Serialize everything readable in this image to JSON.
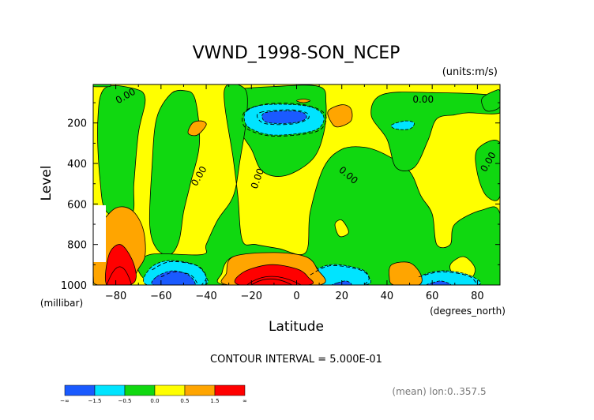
{
  "chart_data": {
    "type": "contour",
    "title": "VWND_1998-SON_NCEP",
    "units": "(units:m/s)",
    "xlabel": "Latitude",
    "xunits": "(degrees_north)",
    "ylabel": "Level",
    "yunits": "(millibar)",
    "xlim": [
      -90,
      90
    ],
    "ylim": [
      1000,
      10
    ],
    "x_ticks": [
      -80,
      -60,
      -40,
      -20,
      0,
      20,
      40,
      60,
      80
    ],
    "y_ticks": [
      200,
      400,
      600,
      800,
      1000
    ],
    "contour_interval_text": "CONTOUR INTERVAL = 5.000E-01",
    "mean_text": "(mean) lon:0..357.5",
    "zero_contour_label": "0.00",
    "colorbar": {
      "levels": [
        "-∞",
        "-1.5",
        "-0.5",
        "0.0",
        "0.5",
        "1.5",
        "∞"
      ],
      "colors": [
        "#1a5aff",
        "#00e4ff",
        "#10d810",
        "#ffff00",
        "#ffa500",
        "#ff0000"
      ]
    },
    "colors": {
      "positive_small": "#ffff00",
      "negative_small": "#10d810",
      "positive_mid": "#ffa500",
      "negative_mid": "#00e4ff",
      "positive_strong": "#ff0000",
      "negative_strong": "#1a5aff"
    },
    "regions": [
      {
        "type": "negative_small",
        "points": [
          [
            -85,
            30
          ],
          [
            -72,
            30
          ],
          [
            -67,
            80
          ],
          [
            -70,
            250
          ],
          [
            -72,
            500
          ],
          [
            -73,
            650
          ],
          [
            -84,
            640
          ],
          [
            -87,
            480
          ],
          [
            -88,
            200
          ]
        ]
      },
      {
        "type": "negative_small",
        "points": [
          [
            -50,
            40
          ],
          [
            -45,
            80
          ],
          [
            -43,
            300
          ],
          [
            -47,
            500
          ],
          [
            -50,
            640
          ],
          [
            -52,
            780
          ],
          [
            -56,
            850
          ],
          [
            -62,
            820
          ],
          [
            -65,
            700
          ],
          [
            -64,
            420
          ],
          [
            -62,
            180
          ],
          [
            -56,
            60
          ]
        ]
      },
      {
        "type": "negative_small",
        "points": [
          [
            -30,
            40
          ],
          [
            -10,
            20
          ],
          [
            10,
            20
          ],
          [
            13,
            100
          ],
          [
            12,
            250
          ],
          [
            7,
            380
          ],
          [
            -5,
            460
          ],
          [
            -15,
            440
          ],
          [
            -20,
            330
          ],
          [
            -26,
            220
          ],
          [
            -28,
            90
          ]
        ]
      },
      {
        "type": "negative_small",
        "points": [
          [
            -32,
            40
          ],
          [
            -23,
            30
          ],
          [
            -22,
            160
          ],
          [
            -25,
            380
          ],
          [
            -28,
            560
          ],
          [
            -35,
            680
          ],
          [
            -40,
            800
          ],
          [
            -42,
            850
          ],
          [
            -65,
            850
          ],
          [
            -70,
            930
          ],
          [
            -58,
            1000
          ],
          [
            -10,
            1000
          ],
          [
            25,
            1000
          ],
          [
            60,
            1000
          ],
          [
            90,
            1000
          ],
          [
            90,
            650
          ],
          [
            82,
            630
          ],
          [
            70,
            700
          ],
          [
            68,
            800
          ],
          [
            62,
            800
          ],
          [
            60,
            650
          ],
          [
            55,
            560
          ],
          [
            50,
            440
          ],
          [
            40,
            360
          ],
          [
            30,
            320
          ],
          [
            20,
            330
          ],
          [
            12,
            420
          ],
          [
            6,
            640
          ],
          [
            4,
            840
          ],
          [
            -8,
            820
          ],
          [
            -18,
            800
          ],
          [
            -24,
            780
          ],
          [
            -26,
            560
          ],
          [
            -28,
            380
          ]
        ]
      },
      {
        "type": "negative_small",
        "points": [
          [
            38,
            60
          ],
          [
            60,
            50
          ],
          [
            90,
            70
          ],
          [
            90,
            150
          ],
          [
            76,
            150
          ],
          [
            70,
            160
          ],
          [
            62,
            180
          ],
          [
            58,
            290
          ],
          [
            52,
            420
          ],
          [
            44,
            420
          ],
          [
            40,
            280
          ],
          [
            33,
            160
          ]
        ]
      },
      {
        "type": "negative_small",
        "points": [
          [
            80,
            330
          ],
          [
            90,
            300
          ],
          [
            90,
            560
          ],
          [
            84,
            560
          ],
          [
            80,
            450
          ]
        ]
      },
      {
        "type": "negative_small",
        "points": [
          [
            82,
            80
          ],
          [
            88,
            40
          ],
          [
            90,
            45
          ],
          [
            90,
            120
          ],
          [
            84,
            140
          ]
        ]
      },
      {
        "type": "negative_small",
        "points": [
          [
            -90,
            10
          ],
          [
            -83,
            10
          ],
          [
            -83,
            20
          ],
          [
            -90,
            20
          ]
        ]
      },
      {
        "type": "positive_small",
        "points": [
          [
            -28,
            860
          ],
          [
            -10,
            850
          ],
          [
            3,
            860
          ],
          [
            10,
            930
          ],
          [
            12,
            1000
          ],
          [
            -31,
            1000
          ],
          [
            -33,
            940
          ]
        ]
      },
      {
        "type": "positive_small",
        "points": [
          [
            20,
            680
          ],
          [
            23,
            740
          ],
          [
            19,
            760
          ],
          [
            17,
            700
          ]
        ]
      },
      {
        "type": "positive_small",
        "points": [
          [
            68,
            900
          ],
          [
            74,
            860
          ],
          [
            79,
            920
          ],
          [
            76,
            980
          ],
          [
            70,
            960
          ]
        ]
      },
      {
        "type": "negative_mid",
        "points": [
          [
            -22,
            140
          ],
          [
            -14,
            110
          ],
          [
            2,
            112
          ],
          [
            10,
            140
          ],
          [
            12,
            190
          ],
          [
            7,
            240
          ],
          [
            -10,
            260
          ],
          [
            -20,
            230
          ],
          [
            -23,
            190
          ]
        ]
      },
      {
        "type": "negative_mid",
        "points": [
          [
            -65,
            920
          ],
          [
            -57,
            880
          ],
          [
            -45,
            900
          ],
          [
            -40,
            960
          ],
          [
            -42,
            1000
          ],
          [
            -66,
            1000
          ]
        ]
      },
      {
        "type": "negative_mid",
        "points": [
          [
            5,
            950
          ],
          [
            15,
            900
          ],
          [
            28,
            920
          ],
          [
            32,
            960
          ],
          [
            30,
            1000
          ],
          [
            4,
            1000
          ]
        ]
      },
      {
        "type": "negative_mid",
        "points": [
          [
            54,
            960
          ],
          [
            64,
            930
          ],
          [
            76,
            950
          ],
          [
            80,
            1000
          ],
          [
            52,
            1000
          ]
        ]
      },
      {
        "type": "negative_mid",
        "points": [
          [
            42,
            210
          ],
          [
            48,
            190
          ],
          [
            52,
            200
          ],
          [
            50,
            230
          ],
          [
            44,
            230
          ]
        ]
      },
      {
        "type": "negative_strong",
        "points": [
          [
            -14,
            150
          ],
          [
            -4,
            140
          ],
          [
            3,
            150
          ],
          [
            4,
            180
          ],
          [
            -2,
            200
          ],
          [
            -12,
            200
          ],
          [
            -15,
            180
          ]
        ]
      },
      {
        "type": "negative_strong",
        "points": [
          [
            -62,
            960
          ],
          [
            -55,
            930
          ],
          [
            -48,
            950
          ],
          [
            -45,
            990
          ],
          [
            -47,
            1000
          ],
          [
            -63,
            1000
          ]
        ]
      },
      {
        "type": "negative_strong",
        "points": [
          [
            18,
            990
          ],
          [
            22,
            980
          ],
          [
            24,
            1000
          ],
          [
            16,
            1000
          ]
        ]
      },
      {
        "type": "negative_strong",
        "points": [
          [
            60,
            990
          ],
          [
            64,
            980
          ],
          [
            68,
            1000
          ],
          [
            58,
            1000
          ]
        ]
      },
      {
        "type": "positive_mid",
        "points": [
          [
            -87,
            700
          ],
          [
            -80,
            620
          ],
          [
            -73,
            630
          ],
          [
            -68,
            720
          ],
          [
            -67,
            850
          ],
          [
            -70,
            920
          ],
          [
            -75,
            1000
          ],
          [
            -88,
            1000
          ],
          [
            -90,
            950
          ],
          [
            -90,
            750
          ]
        ]
      },
      {
        "type": "positive_mid",
        "points": [
          [
            -28,
            860
          ],
          [
            -10,
            840
          ],
          [
            4,
            860
          ],
          [
            9,
            920
          ],
          [
            10,
            1000
          ],
          [
            -30,
            1000
          ],
          [
            -31,
            940
          ]
        ]
      },
      {
        "type": "positive_mid",
        "points": [
          [
            14,
            140
          ],
          [
            20,
            110
          ],
          [
            24,
            130
          ],
          [
            24,
            190
          ],
          [
            18,
            220
          ],
          [
            15,
            190
          ]
        ]
      },
      {
        "type": "positive_mid",
        "points": [
          [
            -46,
            200
          ],
          [
            -42,
            190
          ],
          [
            -40,
            210
          ],
          [
            -44,
            260
          ],
          [
            -48,
            250
          ]
        ]
      },
      {
        "type": "positive_mid",
        "points": [
          [
            42,
            900
          ],
          [
            50,
            890
          ],
          [
            55,
            950
          ],
          [
            54,
            1000
          ],
          [
            43,
            1000
          ],
          [
            41,
            960
          ]
        ]
      },
      {
        "type": "positive_mid",
        "points": [
          [
            0,
            90
          ],
          [
            3,
            82
          ],
          [
            6,
            90
          ],
          [
            3,
            100
          ]
        ]
      },
      {
        "type": "positive_strong",
        "points": [
          [
            -83,
            850
          ],
          [
            -78,
            800
          ],
          [
            -73,
            870
          ],
          [
            -71,
            960
          ],
          [
            -74,
            1000
          ],
          [
            -84,
            1000
          ]
        ]
      },
      {
        "type": "positive_strong",
        "points": [
          [
            -24,
            940
          ],
          [
            -12,
            900
          ],
          [
            0,
            920
          ],
          [
            5,
            960
          ],
          [
            5,
            1000
          ],
          [
            -25,
            1000
          ]
        ]
      }
    ],
    "negative_dashed_contours": [
      {
        "points": [
          [
            -22,
            135
          ],
          [
            -12,
            105
          ],
          [
            2,
            108
          ],
          [
            11,
            140
          ],
          [
            13,
            190
          ],
          [
            8,
            245
          ],
          [
            -10,
            265
          ],
          [
            -21,
            235
          ],
          [
            -24,
            190
          ]
        ]
      },
      {
        "points": [
          [
            -16,
            148
          ],
          [
            -4,
            135
          ],
          [
            4,
            148
          ],
          [
            5,
            180
          ],
          [
            -2,
            205
          ],
          [
            -13,
            205
          ],
          [
            -17,
            180
          ]
        ]
      },
      {
        "points": [
          [
            -64,
            925
          ],
          [
            -56,
            885
          ],
          [
            -44,
            905
          ],
          [
            -40,
            960
          ],
          [
            -42,
            1000
          ]
        ]
      },
      {
        "points": [
          [
            -60,
            960
          ],
          [
            -54,
            935
          ],
          [
            -47,
            950
          ],
          [
            -44,
            990
          ]
        ]
      },
      {
        "points": [
          [
            6,
            950
          ],
          [
            15,
            905
          ],
          [
            28,
            925
          ],
          [
            32,
            965
          ],
          [
            30,
            1000
          ]
        ]
      },
      {
        "points": [
          [
            54,
            960
          ],
          [
            64,
            935
          ],
          [
            76,
            955
          ],
          [
            80,
            1000
          ]
        ]
      }
    ],
    "zero_label_positions": [
      {
        "lat": -75,
        "lev": 80,
        "rot": -30
      },
      {
        "lat": -42,
        "lev": 470,
        "rot": -60
      },
      {
        "lat": -16,
        "lev": 480,
        "rot": -70
      },
      {
        "lat": 22,
        "lev": 470,
        "rot": 40
      },
      {
        "lat": 56,
        "lev": 100,
        "rot": 0
      },
      {
        "lat": 86,
        "lev": 400,
        "rot": -60
      }
    ]
  }
}
